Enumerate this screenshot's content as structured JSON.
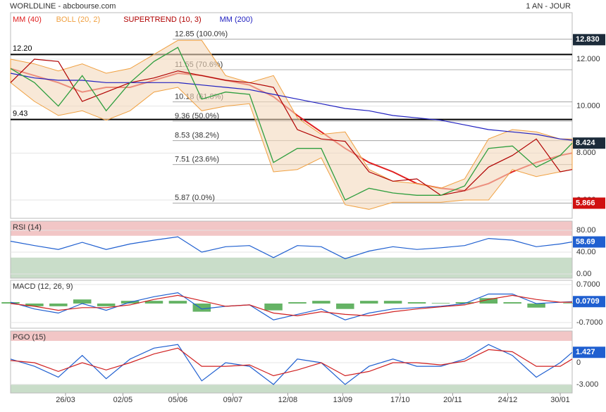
{
  "header": {
    "title": "WORLDLINE - abcbourse.com",
    "period": "1 AN - JOUR"
  },
  "chart_data": [
    {
      "type": "line",
      "xlim": [
        0,
        235
      ],
      "ylim": [
        5.22,
        13.98
      ],
      "x": [
        0,
        10,
        20,
        30,
        40,
        50,
        60,
        70,
        80,
        90,
        100,
        110,
        120,
        130,
        140,
        150,
        160,
        170,
        180,
        190,
        200,
        210,
        220,
        230,
        235
      ],
      "values": [
        11.6,
        11.0,
        10.0,
        11.3,
        9.8,
        11.0,
        11.9,
        12.5,
        10.3,
        10.6,
        10.5,
        7.6,
        8.2,
        8.2,
        6.0,
        6.5,
        6.3,
        6.2,
        6.2,
        6.6,
        8.2,
        8.3,
        7.4,
        7.9,
        8.424
      ],
      "color": "#2e9e3e",
      "series": [
        {
          "name": "MM (40)",
          "color": "#e02020",
          "values": [
            11.6,
            11.3,
            11.0,
            10.6,
            10.8,
            10.8,
            11.1,
            11.4,
            11.3,
            11.1,
            10.9,
            10.4,
            9.6,
            8.9,
            8.2,
            7.6,
            7.2,
            6.7,
            6.5,
            6.4,
            6.7,
            7.2,
            7.6,
            7.9,
            8.0
          ]
        },
        {
          "name": "BOLL (20, 2)",
          "color": "#f0a040",
          "upper": [
            12.0,
            11.8,
            11.5,
            11.8,
            11.4,
            11.6,
            12.2,
            12.8,
            12.8,
            11.3,
            11.0,
            11.3,
            9.5,
            8.8,
            8.9,
            7.3,
            6.8,
            6.7,
            6.5,
            6.9,
            8.6,
            9.0,
            8.9,
            8.6,
            8.6
          ],
          "lower": [
            11.0,
            10.2,
            9.6,
            9.8,
            9.4,
            9.8,
            10.6,
            10.8,
            9.8,
            10.0,
            10.1,
            7.2,
            7.3,
            7.8,
            5.8,
            5.6,
            5.9,
            5.9,
            5.9,
            6.0,
            6.0,
            7.3,
            7.0,
            7.2,
            7.3
          ]
        },
        {
          "name": "SUPERTREND (10, 3)",
          "color": "#b00000",
          "values": [
            11.0,
            12.0,
            11.9,
            10.2,
            10.6,
            11.0,
            11.2,
            11.5,
            11.3,
            11.1,
            11.0,
            10.8,
            9.0,
            8.6,
            8.5,
            7.2,
            6.8,
            6.9,
            6.2,
            6.4,
            7.4,
            7.9,
            8.6,
            7.2,
            7.3
          ]
        },
        {
          "name": "MM (200)",
          "color": "#2020c0",
          "values": [
            11.4,
            11.2,
            11.1,
            11.1,
            11.0,
            11.0,
            11.0,
            11.0,
            10.9,
            10.8,
            10.7,
            10.5,
            10.3,
            10.1,
            9.9,
            9.8,
            9.6,
            9.5,
            9.4,
            9.2,
            9.0,
            8.9,
            8.8,
            8.6,
            8.55
          ]
        }
      ],
      "yticks": [
        {
          "value": 12,
          "label": "12.000"
        },
        {
          "value": 10,
          "label": "10.000"
        },
        {
          "value": 8,
          "label": "8.000"
        },
        {
          "value": 6,
          "label": "6.000"
        }
      ],
      "levels": [
        {
          "value": 12.2,
          "label": "12.20"
        },
        {
          "value": 9.43,
          "label": "9.43"
        }
      ],
      "fibonacci": [
        {
          "value": 12.85,
          "label": "12.85  (100.0%)"
        },
        {
          "value": 11.55,
          "label": "11.55  (70.6%)"
        },
        {
          "value": 10.18,
          "label": "10.18  (61.8%)"
        },
        {
          "value": 9.36,
          "label": "9.36  (50.0%)"
        },
        {
          "value": 8.53,
          "label": "8.53  (38.2%)"
        },
        {
          "value": 7.51,
          "label": "7.51  (23.6%)"
        },
        {
          "value": 5.87,
          "label": "5.87  (0.0%)"
        }
      ],
      "markers": [
        {
          "value": 12.83,
          "label": "12.830",
          "color": "#1c2b3a"
        },
        {
          "value": 8.424,
          "label": "8.424",
          "color": "#1c2b3a"
        },
        {
          "value": 5.866,
          "label": "5.866",
          "color": "#d01010"
        }
      ]
    },
    {
      "type": "line",
      "title": "RSI (14)",
      "xlim": [
        0,
        235
      ],
      "ylim": [
        -7.7,
        96.8
      ],
      "x": [
        0,
        10,
        20,
        30,
        40,
        50,
        60,
        70,
        80,
        90,
        100,
        110,
        120,
        130,
        140,
        150,
        160,
        170,
        180,
        190,
        200,
        210,
        220,
        230,
        235
      ],
      "series": [
        {
          "color": "#1f5fd0",
          "values": [
            60,
            52,
            45,
            58,
            45,
            55,
            62,
            68,
            40,
            50,
            52,
            30,
            52,
            50,
            28,
            42,
            50,
            45,
            48,
            52,
            65,
            62,
            50,
            55,
            58.69
          ]
        }
      ],
      "zones": [
        {
          "above": 70,
          "color": "#f2c6c6"
        },
        {
          "below": 30,
          "color": "#c9ddc9"
        }
      ],
      "yticks": [
        {
          "value": 80,
          "label": "80.00"
        },
        {
          "value": 40,
          "label": "40.00"
        },
        {
          "value": 0,
          "label": "0.00"
        }
      ],
      "markers": [
        {
          "value": 58.69,
          "label": "58.69",
          "color": "#1f5fd0"
        }
      ]
    },
    {
      "type": "line",
      "title": "MACD (12, 26, 9)",
      "xlim": [
        0,
        235
      ],
      "ylim": [
        -0.907,
        0.855
      ],
      "x": [
        0,
        10,
        20,
        30,
        40,
        50,
        60,
        70,
        80,
        90,
        100,
        110,
        120,
        130,
        140,
        150,
        160,
        170,
        180,
        190,
        200,
        210,
        220,
        230,
        235
      ],
      "histogram": {
        "color": "#3ea03e",
        "values": [
          0.05,
          -0.1,
          -0.1,
          0.15,
          -0.1,
          0.1,
          0.1,
          0.1,
          -0.3,
          0.0,
          0.0,
          -0.25,
          0.05,
          0.1,
          -0.2,
          0.1,
          0.1,
          0.05,
          0.02,
          0.05,
          0.2,
          0.05,
          -0.15,
          0.0,
          0.02
        ]
      },
      "series": [
        {
          "color": "#1f5fd0",
          "values": [
            0.05,
            -0.2,
            -0.35,
            0.0,
            -0.25,
            0.05,
            0.25,
            0.4,
            -0.2,
            -0.1,
            -0.05,
            -0.6,
            -0.4,
            -0.2,
            -0.6,
            -0.35,
            -0.2,
            -0.15,
            -0.1,
            0.0,
            0.35,
            0.35,
            0.0,
            0.05,
            0.0709
          ]
        },
        {
          "color": "#d02020",
          "values": [
            0.0,
            -0.1,
            -0.25,
            -0.15,
            -0.15,
            -0.05,
            0.15,
            0.3,
            0.1,
            -0.1,
            -0.05,
            -0.35,
            -0.45,
            -0.3,
            -0.4,
            -0.45,
            -0.3,
            -0.2,
            -0.12,
            -0.05,
            0.15,
            0.3,
            0.15,
            0.05,
            0.05
          ]
        }
      ],
      "yticks": [
        {
          "value": 0.7,
          "label": "0.7000"
        },
        {
          "value": -0.7,
          "label": "-0.7000"
        }
      ],
      "markers": [
        {
          "value": 0.0709,
          "label": "0.0709",
          "color": "#1f5fd0"
        }
      ]
    },
    {
      "type": "line",
      "title": "PGO (15)",
      "xlim": [
        0,
        235
      ],
      "ylim": [
        -4.17,
        4.36
      ],
      "x": [
        0,
        10,
        20,
        30,
        40,
        50,
        60,
        70,
        80,
        90,
        100,
        110,
        120,
        130,
        140,
        150,
        160,
        170,
        180,
        190,
        200,
        210,
        220,
        230,
        235
      ],
      "series": [
        {
          "color": "#1f5fd0",
          "values": [
            0.5,
            -0.5,
            -2.0,
            1.0,
            -2.2,
            0.5,
            2.0,
            2.5,
            -2.5,
            0.0,
            -0.5,
            -3.0,
            0.5,
            0.0,
            -3.0,
            -0.5,
            0.5,
            -0.5,
            -0.5,
            0.5,
            2.5,
            1.0,
            -2.0,
            0.0,
            1.427
          ]
        },
        {
          "color": "#d02020",
          "values": [
            0.3,
            0.0,
            -1.2,
            0.0,
            -1.0,
            0.0,
            1.2,
            2.0,
            -0.5,
            -0.5,
            -0.3,
            -1.8,
            -1.0,
            0.0,
            -1.8,
            -1.2,
            0.0,
            0.0,
            -0.3,
            0.2,
            1.8,
            1.5,
            -0.5,
            -0.5,
            0.5
          ]
        }
      ],
      "zones": [
        {
          "above": 3,
          "color": "#f2c6c6"
        },
        {
          "below": -3,
          "color": "#c9ddc9"
        }
      ],
      "yticks": [
        0,
        {
          "value": -3,
          "label": "-3.000"
        }
      ],
      "markers": [
        {
          "value": 1.427,
          "label": "1.427",
          "color": "#1f5fd0"
        }
      ],
      "xticks": [
        {
          "value": 23,
          "label": "26/03"
        },
        {
          "value": 47,
          "label": "02/05"
        },
        {
          "value": 70,
          "label": "05/06"
        },
        {
          "value": 93,
          "label": "09/07"
        },
        {
          "value": 116,
          "label": "12/08"
        },
        {
          "value": 139,
          "label": "13/09"
        },
        {
          "value": 163,
          "label": "17/10"
        },
        {
          "value": 185,
          "label": "20/11"
        },
        {
          "value": 208,
          "label": "24/12"
        },
        {
          "value": 230,
          "label": "30/01"
        }
      ]
    }
  ]
}
